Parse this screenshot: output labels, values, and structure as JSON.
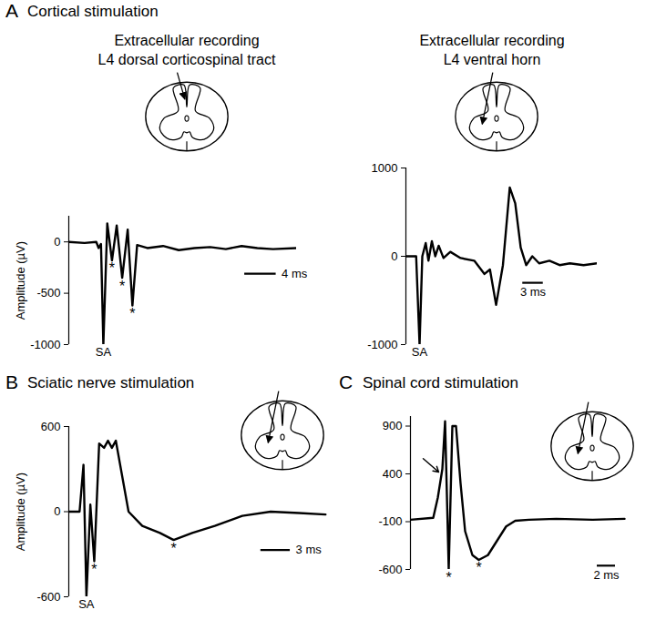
{
  "chart_data": [
    {
      "type": "line",
      "panel": "A",
      "title": "Cortical stimulation",
      "subtitle": "Extracellular recording\nL4 dorsal corticospinal tract",
      "ylabel": "Amplitude (µV)",
      "color": "#000000",
      "grid": false,
      "tick_labels": "y",
      "xlim": [
        0,
        29
      ],
      "ylim": [
        -1000,
        250
      ],
      "yticks": [
        -1000,
        -500,
        0
      ],
      "x": [
        0,
        2,
        3.5,
        3.8,
        4.1,
        4.4,
        4.9,
        5.5,
        6.1,
        6.8,
        7.5,
        8.1,
        8.7,
        10,
        12,
        14,
        16,
        18,
        20,
        22,
        24,
        26,
        29
      ],
      "values": [
        0,
        -10,
        0,
        -60,
        -20,
        -1000,
        180,
        -180,
        160,
        -350,
        120,
        -620,
        -30,
        -60,
        -40,
        -80,
        -60,
        -50,
        -70,
        -40,
        -60,
        -70,
        -60
      ],
      "annotations": [
        {
          "text": "SA",
          "x": 4.4,
          "y": -1000
        },
        {
          "text": "*",
          "x": 5.5,
          "y": -180
        },
        {
          "text": "*",
          "x": 6.8,
          "y": -350
        },
        {
          "text": "*",
          "x": 8.1,
          "y": -620
        }
      ],
      "scale_bar": {
        "x": 22.4,
        "y": -310,
        "length": 4,
        "label": "4 ms"
      }
    },
    {
      "type": "line",
      "subtitle": "Extracellular recording\nL4 ventral horn",
      "color": "#000000",
      "grid": false,
      "tick_labels": "y",
      "xlim": [
        0,
        28
      ],
      "ylim": [
        -1000,
        1000
      ],
      "yticks": [
        -1000,
        0,
        1000
      ],
      "x": [
        0,
        1.5,
        2.0,
        2.4,
        2.9,
        3.3,
        3.8,
        4.3,
        4.8,
        5.5,
        6.5,
        8,
        10,
        11.5,
        12.3,
        13.2,
        14.2,
        15.2,
        16.0,
        16.8,
        17.6,
        18.5,
        19.5,
        21,
        22.5,
        24,
        26,
        28
      ],
      "values": [
        0,
        0,
        -1000,
        0,
        150,
        -50,
        170,
        0,
        120,
        -20,
        50,
        -20,
        -50,
        -200,
        -150,
        -550,
        -100,
        780,
        600,
        100,
        -100,
        0,
        -80,
        -50,
        -100,
        -80,
        -100,
        -80
      ],
      "annotations": [
        {
          "text": "SA",
          "x": 2.0,
          "y": -1000
        }
      ],
      "scale_bar": {
        "x": 17.1,
        "y": -300,
        "length": 3,
        "label": "3 ms"
      }
    },
    {
      "type": "line",
      "panel": "B",
      "title": "Sciatic nerve stimulation",
      "ylabel": "Amplitude (µV)",
      "color": "#000000",
      "grid": false,
      "tick_labels": "y",
      "xlim": [
        0,
        26.5
      ],
      "ylim": [
        -600,
        600
      ],
      "yticks": [
        -600,
        0,
        600
      ],
      "x": [
        0,
        1.1,
        1.5,
        1.8,
        2.2,
        2.6,
        3.1,
        3.6,
        4.0,
        4.4,
        4.8,
        6.1,
        7.5,
        9.3,
        10.7,
        12.6,
        14.9,
        17.7,
        20.6,
        23.5,
        26.2
      ],
      "values": [
        0,
        0,
        330,
        -600,
        50,
        -350,
        480,
        450,
        500,
        450,
        500,
        0,
        -100,
        -150,
        -200,
        -150,
        -100,
        -30,
        0,
        -10,
        -20
      ],
      "annotations": [
        {
          "text": "SA",
          "x": 1.8,
          "y": -600
        },
        {
          "text": "*",
          "x": 2.6,
          "y": -350
        },
        {
          "text": "*",
          "x": 10.7,
          "y": -200
        }
      ],
      "scale_bar": {
        "x": 19.6,
        "y": -270,
        "length": 3,
        "label": "3 ms"
      }
    },
    {
      "type": "line",
      "panel": "C",
      "title": "Spinal cord stimulation",
      "color": "#000000",
      "grid": false,
      "tick_labels": "y",
      "xlim": [
        0,
        25
      ],
      "ylim": [
        -600,
        1000
      ],
      "yticks": [
        -600,
        -100,
        400,
        900
      ],
      "x": [
        0,
        2.5,
        3.0,
        3.5,
        3.8,
        4.2,
        4.6,
        5.0,
        5.5,
        6.0,
        6.8,
        7.5,
        8.5,
        9.5,
        10.5,
        11.5,
        13,
        16,
        20,
        23.5
      ],
      "values": [
        -80,
        -60,
        150,
        450,
        950,
        -600,
        900,
        900,
        300,
        -200,
        -450,
        -500,
        -450,
        -300,
        -150,
        -90,
        -80,
        -70,
        -80,
        -70
      ],
      "annotations": [
        {
          "text": "*",
          "x": 4.2,
          "y": -600
        },
        {
          "text": "*",
          "x": 7.5,
          "y": -500
        }
      ],
      "arrow": {
        "x": 3.4,
        "y": 400
      },
      "scale_bar": {
        "x": 20.5,
        "y": -560,
        "length": 2,
        "label": "2 ms"
      }
    }
  ]
}
